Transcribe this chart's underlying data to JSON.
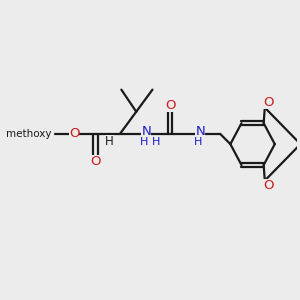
{
  "bg_color": "#ececec",
  "bond_color": "#1a1a1a",
  "carbon_color": "#1a1a1a",
  "nitrogen_color": "#1a1acc",
  "oxygen_color": "#cc1a1a",
  "line_width": 1.6,
  "figsize": [
    3.0,
    3.0
  ],
  "dpi": 100,
  "xlim": [
    0,
    10
  ],
  "ylim": [
    0,
    10
  ]
}
